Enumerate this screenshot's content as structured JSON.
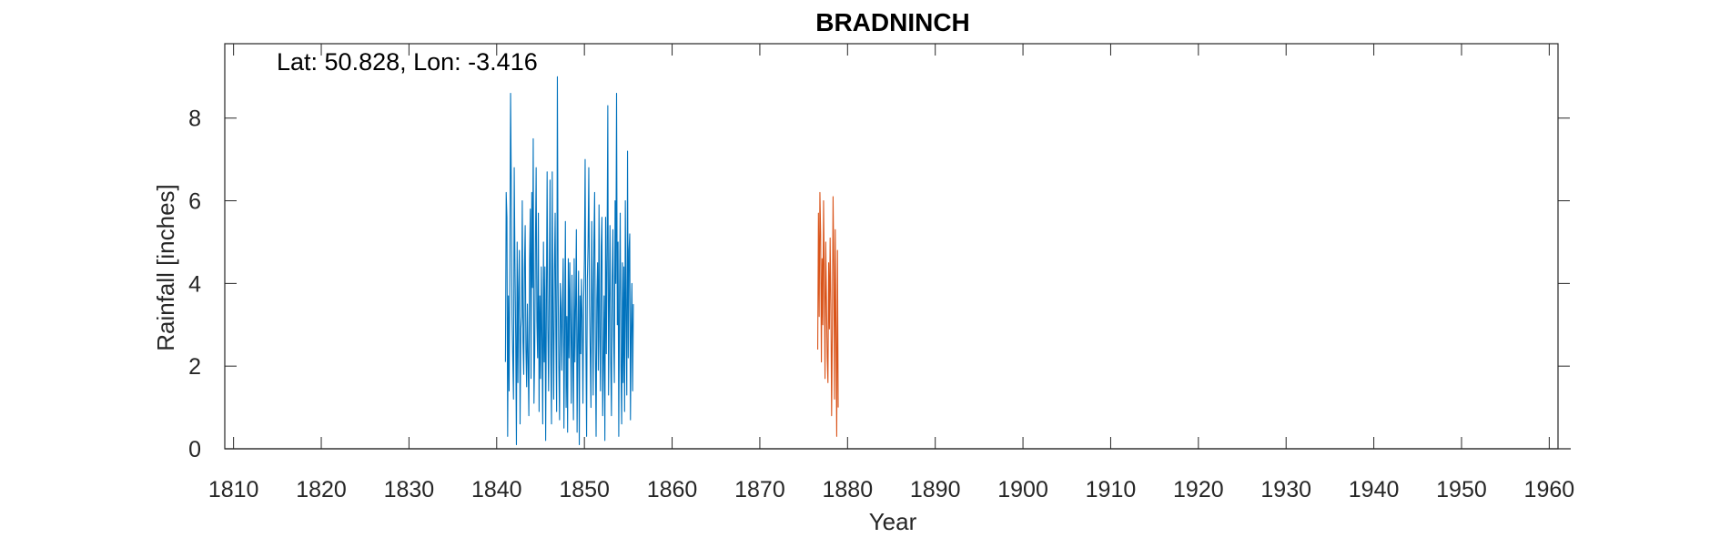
{
  "chart_data": {
    "type": "line",
    "title": "BRADNINCH",
    "annotation": "Lat: 50.828, Lon: -3.416",
    "xlabel": "Year",
    "ylabel": "Rainfall [inches]",
    "xlim": [
      1809,
      1961
    ],
    "ylim": [
      0,
      9.8
    ],
    "xticks": [
      1810,
      1820,
      1830,
      1840,
      1850,
      1860,
      1870,
      1880,
      1890,
      1900,
      1910,
      1920,
      1930,
      1940,
      1950,
      1960
    ],
    "yticks": [
      0,
      2,
      4,
      6,
      8
    ],
    "grid": false,
    "colors": {
      "series1": "#0072BD",
      "series2": "#D95319",
      "axis": "#262626"
    },
    "series": [
      {
        "x_start": 1841.0,
        "x_step": 0.0833333,
        "values": [
          2.1,
          6.2,
          5.6,
          0.3,
          3.7,
          1.4,
          4.4,
          8.6,
          6.3,
          3.2,
          2.2,
          1.2,
          6.8,
          4.5,
          2.7,
          0.1,
          5.0,
          1.6,
          3.9,
          4.8,
          0.6,
          2.9,
          3.2,
          6.0,
          2.6,
          1.8,
          4.4,
          5.4,
          2.4,
          1.5,
          3.5,
          2.1,
          0.8,
          4.6,
          5.8,
          1.7,
          6.2,
          3.9,
          7.5,
          1.1,
          2.3,
          4.9,
          6.8,
          3.1,
          2.2,
          5.7,
          0.9,
          3.7,
          1.7,
          4.4,
          2.6,
          0.6,
          5.0,
          2.1,
          4.4,
          0.2,
          3.4,
          6.7,
          2.9,
          1.4,
          4.1,
          6.5,
          2.2,
          0.6,
          6.7,
          3.0,
          1.2,
          4.3,
          5.7,
          2.8,
          0.9,
          9.0,
          4.1,
          2.0,
          0.7,
          4.0,
          3.4,
          1.9,
          3.5,
          4.6,
          0.5,
          2.8,
          5.5,
          1.0,
          3.2,
          0.4,
          4.6,
          2.2,
          4.5,
          3.0,
          1.1,
          4.2,
          2.3,
          0.7,
          4.6,
          2.1,
          3.5,
          5.3,
          0.4,
          2.6,
          4.3,
          0.1,
          3.7,
          2.3,
          4.1,
          3.1,
          1.1,
          3.6,
          4.6,
          7.0,
          2.6,
          0.3,
          4.1,
          4.9,
          6.8,
          3.5,
          2.3,
          1.0,
          5.5,
          3.6,
          1.3,
          5.0,
          6.2,
          2.4,
          0.3,
          3.6,
          4.5,
          1.9,
          5.9,
          2.7,
          1.4,
          4.9,
          5.6,
          0.8,
          2.1,
          3.7,
          0.2,
          5.6,
          2.3,
          4.8,
          8.3,
          1.3,
          3.5,
          5.4,
          2.1,
          0.8,
          4.1,
          5.3,
          2.7,
          1.6,
          6.0,
          4.0,
          8.6,
          3.0,
          5.0,
          0.3,
          3.7,
          5.7,
          2.0,
          0.6,
          4.5,
          1.6,
          4.4,
          0.9,
          6.0,
          3.1,
          1.3,
          7.2,
          2.2,
          4.8,
          5.2,
          0.7,
          2.9,
          4.0,
          1.4,
          3.5
        ]
      },
      {
        "x_start": 1876.6,
        "x_step": 0.0833333,
        "values": [
          2.4,
          5.7,
          3.2,
          6.2,
          5.2,
          2.1,
          4.6,
          3.0,
          6.0,
          4.2,
          1.7,
          5.0,
          3.6,
          2.2,
          1.6,
          4.5,
          2.9,
          5.1,
          3.5,
          0.8,
          2.9,
          6.1,
          4.4,
          1.2,
          5.3,
          2.7,
          0.3,
          4.8,
          1.0
        ]
      }
    ]
  }
}
